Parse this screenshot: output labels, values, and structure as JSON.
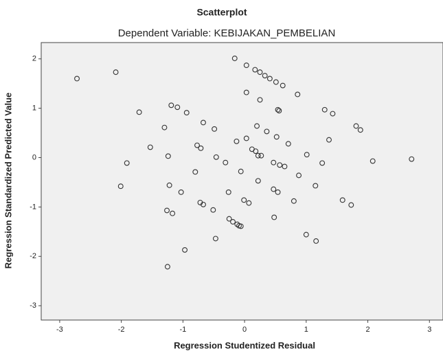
{
  "chart_data": {
    "type": "scatter",
    "title": "Scatterplot",
    "subtitle": "Dependent Variable: KEBIJAKAN_PEMBELIAN",
    "x_label": "Regression Studentized Residual",
    "y_label": "Regression Standardized Predicted Value",
    "color": "#333333",
    "grid": false,
    "xlim": [
      -3.3,
      3.22
    ],
    "ylim": [
      -3.29,
      2.33
    ],
    "xticks": [
      -3,
      -2,
      -1,
      0,
      1,
      2,
      3
    ],
    "yticks": [
      -3,
      -2,
      -1,
      0,
      1,
      2
    ],
    "x": [
      -2.72,
      -2.09,
      -1.71,
      -1.53,
      -1.3,
      -1.19,
      -1.09,
      -0.94,
      -0.67,
      -0.49,
      -0.77,
      -0.71,
      -1.91,
      -2.01,
      -1.24,
      -1.22,
      -1.03,
      -0.8,
      -1.26,
      -1.17,
      -0.72,
      -0.67,
      -0.51,
      -0.46,
      -0.31,
      -0.26,
      -0.97,
      -1.25,
      -0.47,
      -0.25,
      -0.19,
      -0.12,
      -0.09,
      -0.06,
      -0.01,
      0.07,
      -0.06,
      -0.16,
      0.03,
      0.17,
      0.25,
      0.33,
      0.41,
      0.51,
      0.62,
      0.03,
      0.25,
      0.54,
      0.56,
      -0.13,
      0.03,
      0.2,
      0.36,
      0.52,
      0.71,
      0.12,
      0.18,
      0.22,
      0.27,
      0.47,
      0.57,
      0.65,
      0.22,
      0.47,
      0.54,
      0.48,
      0.8,
      0.88,
      0.86,
      1.01,
      1.0,
      1.16,
      1.15,
      1.26,
      1.3,
      1.43,
      1.37,
      1.59,
      1.73,
      1.81,
      1.88,
      2.08,
      2.71
    ],
    "y": [
      1.6,
      1.73,
      0.92,
      0.21,
      0.61,
      1.06,
      1.02,
      0.91,
      0.71,
      0.58,
      0.25,
      0.19,
      -0.11,
      -0.58,
      0.03,
      -0.56,
      -0.7,
      -0.29,
      -1.07,
      -1.13,
      -0.91,
      -0.95,
      -1.06,
      0.01,
      -0.1,
      -0.7,
      -1.87,
      -2.21,
      -1.64,
      -1.24,
      -1.3,
      -1.35,
      -1.38,
      -1.39,
      -0.86,
      -0.92,
      -0.28,
      2.01,
      1.87,
      1.78,
      1.73,
      1.66,
      1.6,
      1.53,
      1.46,
      1.32,
      1.17,
      0.97,
      0.95,
      0.33,
      0.39,
      0.64,
      0.53,
      0.42,
      0.28,
      0.17,
      0.13,
      0.04,
      0.04,
      -0.1,
      -0.15,
      -0.18,
      -0.47,
      -0.64,
      -0.7,
      -1.21,
      -0.88,
      -0.36,
      1.28,
      0.06,
      -1.56,
      -1.69,
      -0.57,
      -0.11,
      0.97,
      0.89,
      0.36,
      -0.86,
      -0.96,
      0.64,
      0.56,
      -0.07,
      -0.03
    ]
  }
}
